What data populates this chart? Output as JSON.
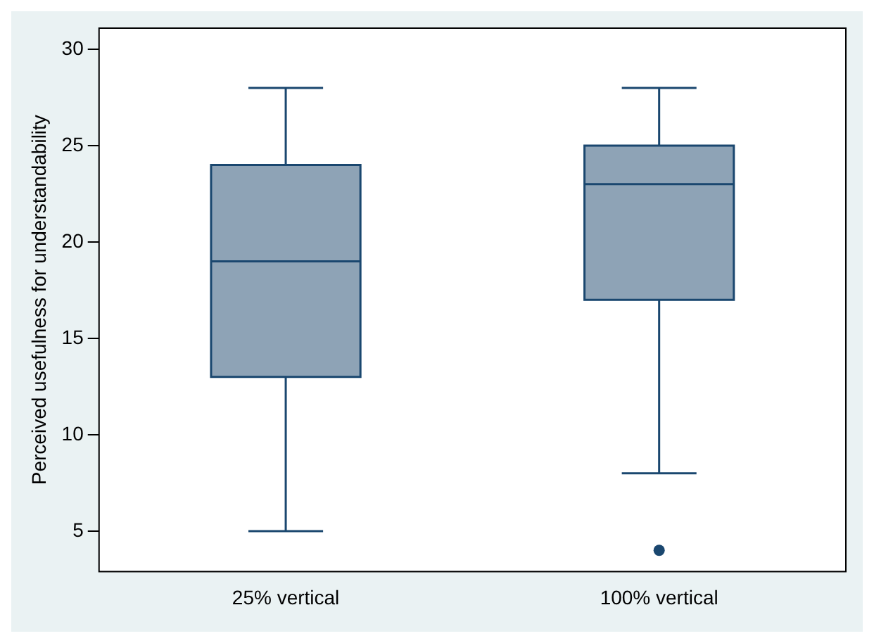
{
  "chart_data": {
    "type": "box",
    "ylabel": "Perceived usefulness for understandability",
    "categories": [
      "25% vertical",
      "100% vertical"
    ],
    "boxes": [
      {
        "low": 5,
        "q1": 13,
        "median": 19,
        "q3": 24,
        "high": 28
      },
      {
        "low": 8,
        "q1": 17,
        "median": 23,
        "q3": 25,
        "high": 28,
        "outliers": [
          4
        ]
      }
    ],
    "color": "#8ea3b6",
    "ylim": [
      2.9,
      31.1
    ],
    "yticks": [
      5,
      10,
      15,
      20,
      25,
      30
    ],
    "grid": false,
    "legend": false
  }
}
